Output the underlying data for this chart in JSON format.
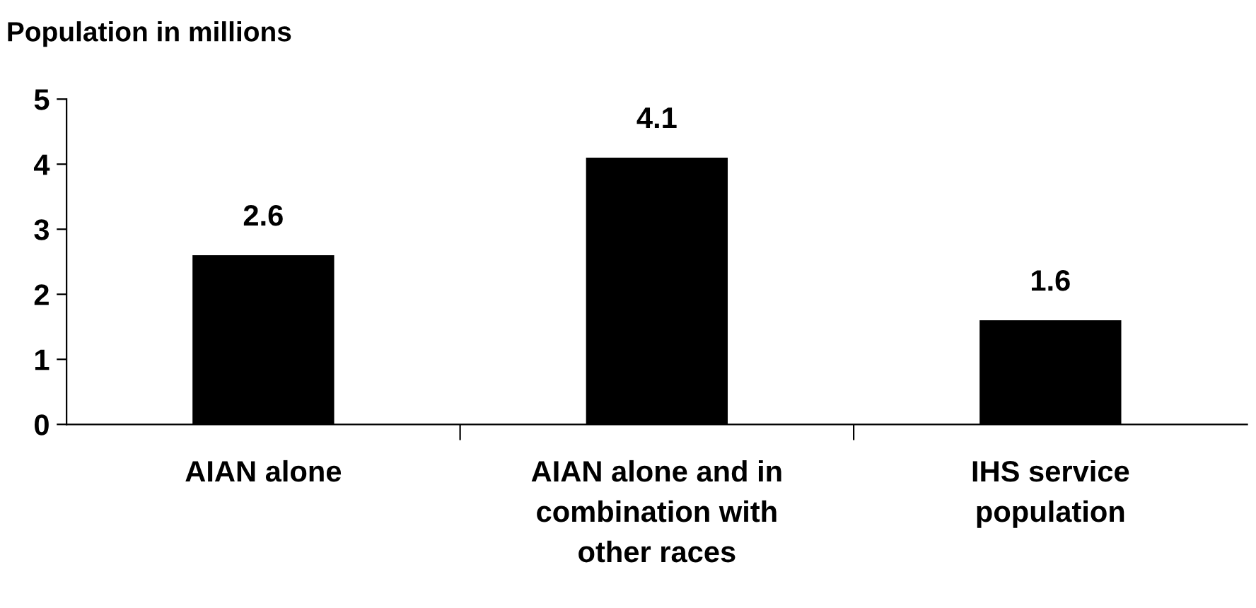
{
  "chart_data": {
    "type": "bar",
    "ylabel": "Population in millions",
    "categories": [
      "AIAN alone",
      "AIAN alone and in\ncombination with\nother races",
      "IHS service\npopulation"
    ],
    "values": [
      2.6,
      4.1,
      1.6
    ],
    "color": "#000000",
    "ylim": [
      0,
      5
    ],
    "yticks": [
      0,
      1,
      2,
      3,
      4,
      5
    ],
    "grid": false,
    "data_labels": true
  }
}
